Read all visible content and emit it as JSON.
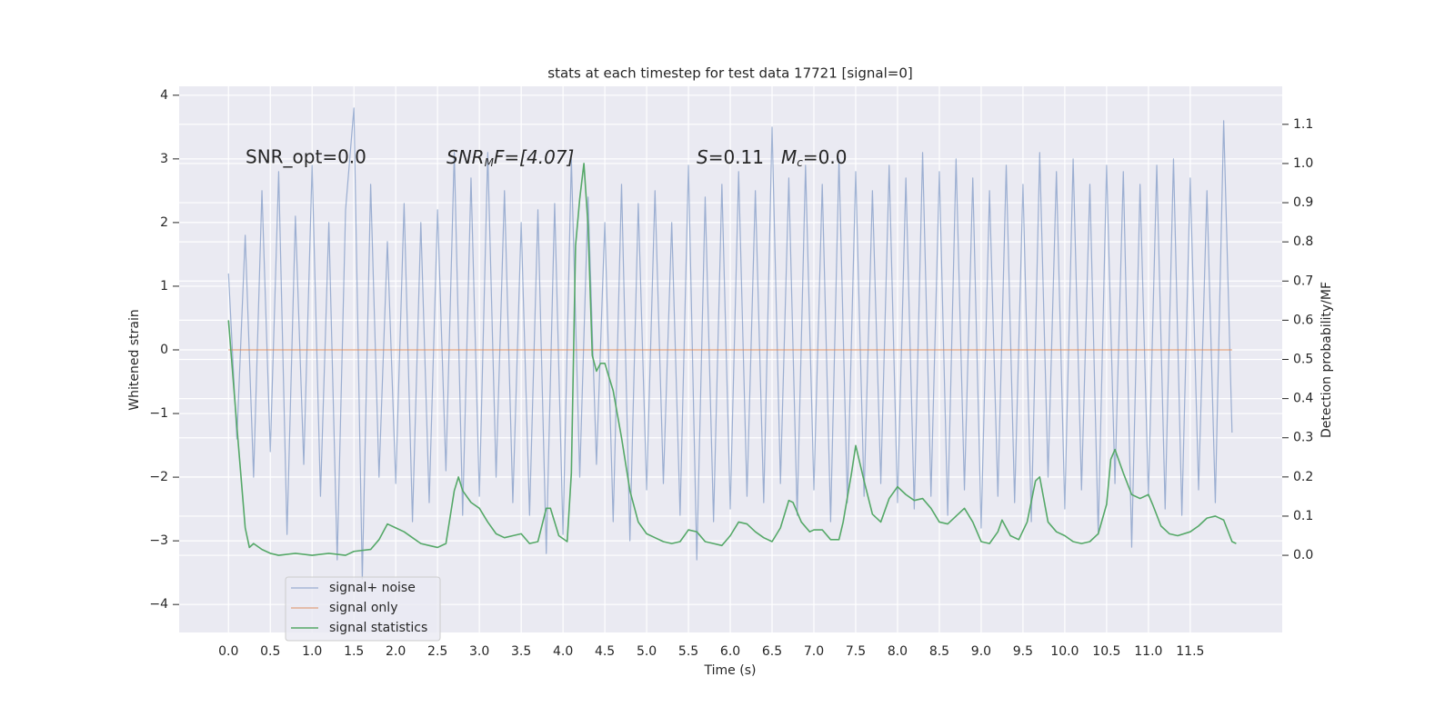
{
  "chart_data": {
    "type": "line",
    "title": "stats at each timestep for test data 17721 [signal=0]",
    "xlabel": "Time (s)",
    "ylabel": "Whitened strain",
    "y2label": "Detection probability/MF",
    "annotations": [
      {
        "base": "SNR_opt=0.0"
      },
      {
        "base": "SNR",
        "sub": "M",
        "rest": "F=[4.07]"
      },
      {
        "base": "S",
        "rest": "=0.11"
      },
      {
        "base": "M",
        "sub": "c",
        "rest": "=0.0"
      }
    ],
    "grid": true,
    "legend": "lower left",
    "xlim": [
      -0.59,
      12.6
    ],
    "ylim": [
      -4.44,
      4.14
    ],
    "y2lim": [
      -0.197,
      1.197
    ],
    "xticks": [
      {
        "value": 0,
        "label": "0.0"
      },
      0.5,
      {
        "value": 1,
        "label": "1.0"
      },
      1.5,
      {
        "value": 2,
        "label": "2.0"
      },
      2.5,
      {
        "value": 3,
        "label": "3.0"
      },
      3.5,
      {
        "value": 4,
        "label": "4.0"
      },
      4.5,
      {
        "value": 5,
        "label": "5.0"
      },
      5.5,
      {
        "value": 6,
        "label": "6.0"
      },
      6.5,
      {
        "value": 7,
        "label": "7.0"
      },
      7.5,
      {
        "value": 8,
        "label": "8.0"
      },
      8.5,
      {
        "value": 9,
        "label": "9.0"
      },
      9.5,
      {
        "value": 10,
        "label": "10.0"
      },
      10.5,
      {
        "value": 11,
        "label": "11.0"
      },
      11.5
    ],
    "yticks": [
      {
        "value": -4,
        "label": "−4"
      },
      {
        "value": -3,
        "label": "−3"
      },
      {
        "value": -2,
        "label": "−2"
      },
      {
        "value": -1,
        "label": "−1"
      },
      0,
      1,
      2,
      3,
      4
    ],
    "y2ticks": [
      {
        "value": 0,
        "label": "0.0"
      },
      0.1,
      0.2,
      0.3,
      0.4,
      0.5,
      0.6,
      0.7,
      0.8,
      0.9,
      {
        "value": 1,
        "label": "1.0"
      },
      1.1
    ],
    "series": [
      {
        "name": "signal+ noise",
        "color": "#4c72b0",
        "axis": "y",
        "x": [
          0,
          0.1,
          0.2,
          0.3,
          0.4,
          0.5,
          0.6,
          0.7,
          0.8,
          0.9,
          1,
          1.1,
          1.2,
          1.3,
          1.4,
          1.5,
          1.6,
          1.7,
          1.8,
          1.9,
          2,
          2.1,
          2.2,
          2.3,
          2.4,
          2.5,
          2.6,
          2.7,
          2.8,
          2.9,
          3,
          3.1,
          3.2,
          3.3,
          3.4,
          3.5,
          3.6,
          3.7,
          3.8,
          3.9,
          4,
          4.1,
          4.2,
          4.3,
          4.4,
          4.5,
          4.6,
          4.7,
          4.8,
          4.9,
          5,
          5.1,
          5.2,
          5.3,
          5.4,
          5.5,
          5.6,
          5.7,
          5.8,
          5.9,
          6,
          6.1,
          6.2,
          6.3,
          6.4,
          6.5,
          6.6,
          6.7,
          6.8,
          6.9,
          7,
          7.1,
          7.2,
          7.3,
          7.4,
          7.5,
          7.6,
          7.7,
          7.8,
          7.9,
          8,
          8.1,
          8.2,
          8.3,
          8.4,
          8.5,
          8.6,
          8.7,
          8.8,
          8.9,
          9,
          9.1,
          9.2,
          9.3,
          9.4,
          9.5,
          9.6,
          9.7,
          9.8,
          9.9,
          10,
          10.1,
          10.2,
          10.3,
          10.4,
          10.5,
          10.6,
          10.7,
          10.8,
          10.9,
          11,
          11.1,
          11.2,
          11.3,
          11.4,
          11.5,
          11.6,
          11.7,
          11.8,
          11.9,
          12
        ],
        "values": [
          1.2,
          -1.4,
          1.8,
          -2.0,
          2.5,
          -1.6,
          2.8,
          -2.9,
          2.1,
          -1.8,
          2.9,
          -2.3,
          2.0,
          -3.3,
          2.2,
          3.8,
          -3.6,
          2.6,
          -2.0,
          1.7,
          -2.1,
          2.3,
          -2.7,
          2.0,
          -2.4,
          2.2,
          -1.9,
          3.1,
          -2.6,
          2.7,
          -2.3,
          3.1,
          -2.0,
          2.5,
          -2.4,
          2.0,
          -2.6,
          2.2,
          -3.2,
          2.3,
          -2.9,
          3.0,
          -2.0,
          2.4,
          -1.8,
          2.0,
          -2.7,
          2.6,
          -3.0,
          2.3,
          -2.2,
          2.5,
          -2.1,
          2.0,
          -2.6,
          2.9,
          -3.3,
          2.4,
          -2.7,
          2.6,
          -2.5,
          2.8,
          -2.3,
          2.5,
          -2.4,
          3.5,
          -2.1,
          2.7,
          -2.6,
          2.9,
          -2.2,
          2.6,
          -2.7,
          3.0,
          -2.4,
          2.8,
          -2.3,
          2.5,
          -2.1,
          2.9,
          -2.4,
          2.7,
          -2.5,
          3.1,
          -2.3,
          2.8,
          -2.6,
          3.0,
          -2.2,
          2.7,
          -2.8,
          2.5,
          -2.3,
          2.9,
          -2.4,
          2.6,
          -2.7,
          3.1,
          -2.0,
          2.8,
          -2.5,
          3.0,
          -2.2,
          2.6,
          -2.9,
          2.9,
          -2.1,
          2.8,
          -3.1,
          2.6,
          -2.3,
          2.9,
          -2.5,
          3.0,
          -2.6,
          2.7,
          -2.2,
          2.5,
          -2.4,
          3.6,
          -1.3
        ]
      },
      {
        "name": "signal only",
        "color": "#dd8452",
        "axis": "y",
        "x": [
          0,
          12
        ],
        "values": [
          0,
          0
        ]
      },
      {
        "name": "signal statistics",
        "color": "#55a868",
        "axis": "y2",
        "x": [
          0,
          0.1,
          0.2,
          0.25,
          0.3,
          0.4,
          0.5,
          0.6,
          0.8,
          1.0,
          1.2,
          1.4,
          1.5,
          1.7,
          1.8,
          1.9,
          2.0,
          2.1,
          2.2,
          2.3,
          2.4,
          2.5,
          2.6,
          2.7,
          2.75,
          2.8,
          2.9,
          3.0,
          3.1,
          3.2,
          3.3,
          3.4,
          3.5,
          3.6,
          3.7,
          3.8,
          3.85,
          3.95,
          4.05,
          4.1,
          4.15,
          4.2,
          4.25,
          4.3,
          4.35,
          4.4,
          4.45,
          4.5,
          4.6,
          4.7,
          4.8,
          4.9,
          5.0,
          5.1,
          5.2,
          5.3,
          5.4,
          5.5,
          5.6,
          5.7,
          5.8,
          5.9,
          6.0,
          6.1,
          6.2,
          6.3,
          6.4,
          6.5,
          6.6,
          6.7,
          6.75,
          6.85,
          6.95,
          7.0,
          7.1,
          7.2,
          7.3,
          7.35,
          7.45,
          7.5,
          7.6,
          7.7,
          7.8,
          7.9,
          8.0,
          8.1,
          8.2,
          8.3,
          8.4,
          8.5,
          8.6,
          8.7,
          8.8,
          8.9,
          9.0,
          9.1,
          9.2,
          9.25,
          9.35,
          9.45,
          9.55,
          9.65,
          9.7,
          9.8,
          9.9,
          10.0,
          10.1,
          10.2,
          10.3,
          10.4,
          10.5,
          10.55,
          10.6,
          10.7,
          10.8,
          10.9,
          11.0,
          11.05,
          11.15,
          11.25,
          11.35,
          11.5,
          11.6,
          11.7,
          11.8,
          11.9,
          12.0,
          12.05
        ],
        "values": [
          0.6,
          0.33,
          0.07,
          0.02,
          0.03,
          0.015,
          0.005,
          0.0,
          0.005,
          0.0,
          0.005,
          0.0,
          0.01,
          0.015,
          0.04,
          0.08,
          0.07,
          0.06,
          0.045,
          0.03,
          0.025,
          0.02,
          0.03,
          0.165,
          0.2,
          0.165,
          0.135,
          0.12,
          0.085,
          0.055,
          0.045,
          0.05,
          0.055,
          0.03,
          0.035,
          0.12,
          0.12,
          0.05,
          0.035,
          0.21,
          0.79,
          0.91,
          1.0,
          0.84,
          0.51,
          0.47,
          0.49,
          0.49,
          0.42,
          0.3,
          0.165,
          0.085,
          0.055,
          0.045,
          0.035,
          0.03,
          0.035,
          0.065,
          0.06,
          0.035,
          0.03,
          0.025,
          0.05,
          0.085,
          0.08,
          0.06,
          0.045,
          0.035,
          0.07,
          0.14,
          0.135,
          0.085,
          0.06,
          0.065,
          0.065,
          0.04,
          0.04,
          0.085,
          0.21,
          0.28,
          0.19,
          0.105,
          0.085,
          0.145,
          0.175,
          0.155,
          0.14,
          0.145,
          0.12,
          0.085,
          0.08,
          0.1,
          0.12,
          0.085,
          0.035,
          0.03,
          0.06,
          0.09,
          0.05,
          0.04,
          0.085,
          0.19,
          0.2,
          0.085,
          0.06,
          0.05,
          0.035,
          0.03,
          0.035,
          0.055,
          0.13,
          0.245,
          0.27,
          0.21,
          0.155,
          0.145,
          0.155,
          0.13,
          0.075,
          0.055,
          0.05,
          0.06,
          0.075,
          0.095,
          0.1,
          0.09,
          0.035,
          0.03
        ]
      }
    ]
  }
}
